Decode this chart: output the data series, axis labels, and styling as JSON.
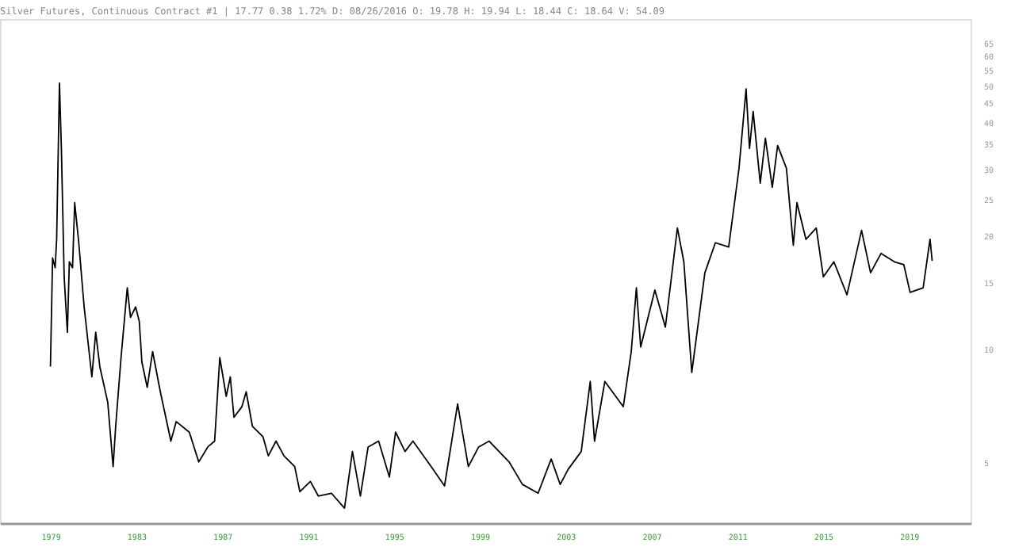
{
  "chart_data": {
    "type": "line",
    "title": "Silver Futures, Continuous Contract #1 | 17.77 0.38 1.72% D: 08/26/2016 O: 19.78 H: 19.94 L: 18.44 C: 18.64 V: 54.09",
    "x": [
      1979.0,
      1979.1,
      1979.22,
      1979.29,
      1979.39,
      1979.42,
      1979.51,
      1979.64,
      1979.79,
      1979.88,
      1980.03,
      1980.13,
      1980.32,
      1980.57,
      1980.93,
      1981.11,
      1981.3,
      1981.67,
      1981.92,
      1982.04,
      1982.29,
      1982.58,
      1982.73,
      1982.97,
      1983.14,
      1983.26,
      1983.51,
      1983.76,
      1984.12,
      1984.61,
      1984.86,
      1985.47,
      1985.91,
      1986.33,
      1986.65,
      1986.89,
      1987.19,
      1987.38,
      1987.55,
      1987.92,
      1988.12,
      1988.41,
      1988.9,
      1989.15,
      1989.51,
      1989.88,
      1990.38,
      1990.62,
      1991.11,
      1991.48,
      1992.09,
      1992.7,
      1993.07,
      1993.44,
      1993.8,
      1994.29,
      1994.79,
      1995.08,
      1995.52,
      1995.89,
      1996.74,
      1997.36,
      1997.73,
      1997.97,
      1998.47,
      1998.95,
      1999.44,
      2000.37,
      2000.99,
      2001.72,
      2002.33,
      2002.75,
      2003.12,
      2003.73,
      2004.15,
      2004.35,
      2004.83,
      2005.69,
      2006.06,
      2006.3,
      2006.5,
      2007.16,
      2007.65,
      2008.21,
      2008.51,
      2008.88,
      2009.49,
      2009.98,
      2010.6,
      2011.08,
      2011.41,
      2011.57,
      2011.74,
      2012.07,
      2012.31,
      2012.63,
      2012.88,
      2013.29,
      2013.61,
      2013.78,
      2014.2,
      2014.68,
      2015.01,
      2015.5,
      2016.11,
      2016.79,
      2017.21,
      2017.7,
      2018.32,
      2018.76,
      2019.05,
      2019.66,
      2019.98,
      2020.08
    ],
    "series": [
      {
        "color": "#000000",
        "values": [
          8.96,
          17.4,
          16.4,
          19.6,
          40.7,
          50.7,
          34.0,
          15.5,
          11.05,
          17.0,
          16.4,
          24.4,
          19.1,
          12.9,
          8.41,
          11.05,
          8.96,
          7.2,
          4.86,
          6.22,
          9.47,
          14.5,
          12.1,
          12.9,
          11.8,
          9.21,
          7.89,
          9.82,
          7.68,
          5.68,
          6.4,
          6.0,
          5.0,
          5.48,
          5.68,
          9.47,
          7.47,
          8.41,
          6.57,
          7.01,
          7.68,
          6.22,
          5.84,
          5.19,
          5.68,
          5.19,
          4.86,
          4.17,
          4.44,
          4.06,
          4.13,
          3.77,
          5.33,
          4.06,
          5.48,
          5.68,
          4.56,
          6.0,
          5.33,
          5.68,
          4.86,
          4.32,
          5.84,
          7.13,
          4.86,
          5.48,
          5.68,
          5.0,
          4.36,
          4.13,
          5.09,
          4.36,
          4.78,
          5.33,
          8.18,
          5.68,
          8.18,
          7.01,
          9.82,
          14.5,
          10.1,
          14.3,
          11.4,
          20.9,
          17.0,
          8.64,
          15.9,
          19.1,
          18.6,
          30.1,
          48.9,
          34.0,
          42.6,
          27.5,
          36.2,
          26.8,
          34.6,
          30.1,
          18.8,
          24.4,
          19.5,
          20.9,
          15.5,
          17.0,
          13.9,
          20.6,
          15.9,
          17.9,
          17.0,
          16.7,
          14.1,
          14.5,
          19.5,
          17.1
        ]
      }
    ],
    "xlim": [
      1976.65,
      2021.87
    ],
    "xticks": [
      1979,
      1983,
      1987,
      1991,
      1995,
      1999,
      2003,
      2007,
      2011,
      2015,
      2019
    ],
    "log": true,
    "ylim": [
      3.44,
      75
    ],
    "yticks": [
      5,
      10,
      15,
      20,
      25,
      30,
      35,
      40,
      45,
      50,
      55,
      60,
      65
    ],
    "grid": false
  }
}
